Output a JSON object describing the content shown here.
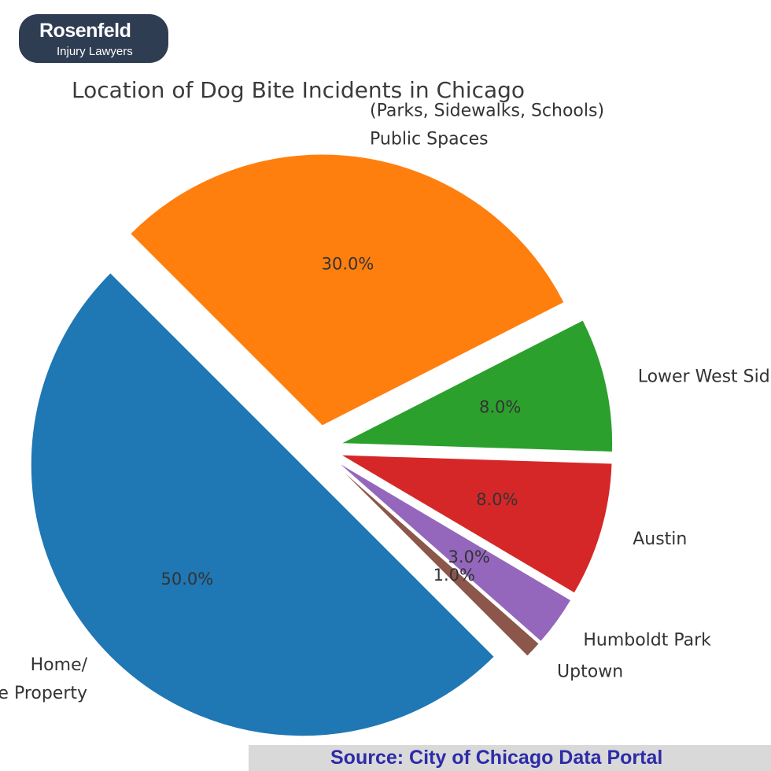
{
  "logo": {
    "name": "Rosenfeld",
    "subtitle": "Injury Lawyers"
  },
  "source": "Source:  City of Chicago Data Portal",
  "colors": {
    "home": "#1f77b4",
    "public": "#ff7f0e",
    "lower_west_side": "#2ca02c",
    "austin": "#d62728",
    "humboldt_park": "#9467bd",
    "uptown": "#8c564b"
  },
  "chart_data": {
    "type": "pie",
    "title": "Location of Dog Bite Incidents in Chicago",
    "slices": [
      {
        "label_lines": [
          "Home/",
          "Private Property"
        ],
        "value": 50.0,
        "pct_label": "50.0%",
        "color": "#1f77b4"
      },
      {
        "label_lines": [
          "(Parks, Sidewalks, Schools)",
          "Public Spaces"
        ],
        "value": 30.0,
        "pct_label": "30.0%",
        "color": "#ff7f0e"
      },
      {
        "label_lines": [
          "Lower West Side"
        ],
        "value": 8.0,
        "pct_label": "8.0%",
        "color": "#2ca02c"
      },
      {
        "label_lines": [
          "Austin"
        ],
        "value": 8.0,
        "pct_label": "8.0%",
        "color": "#d62728"
      },
      {
        "label_lines": [
          "Humboldt Park"
        ],
        "value": 3.0,
        "pct_label": "3.0%",
        "color": "#9467bd"
      },
      {
        "label_lines": [
          "Uptown"
        ],
        "value": 1.0,
        "pct_label": "1.0%",
        "color": "#8c564b"
      }
    ],
    "start_angle": 315,
    "direction": "counterclockwise",
    "exploded": true,
    "legend": "none"
  }
}
